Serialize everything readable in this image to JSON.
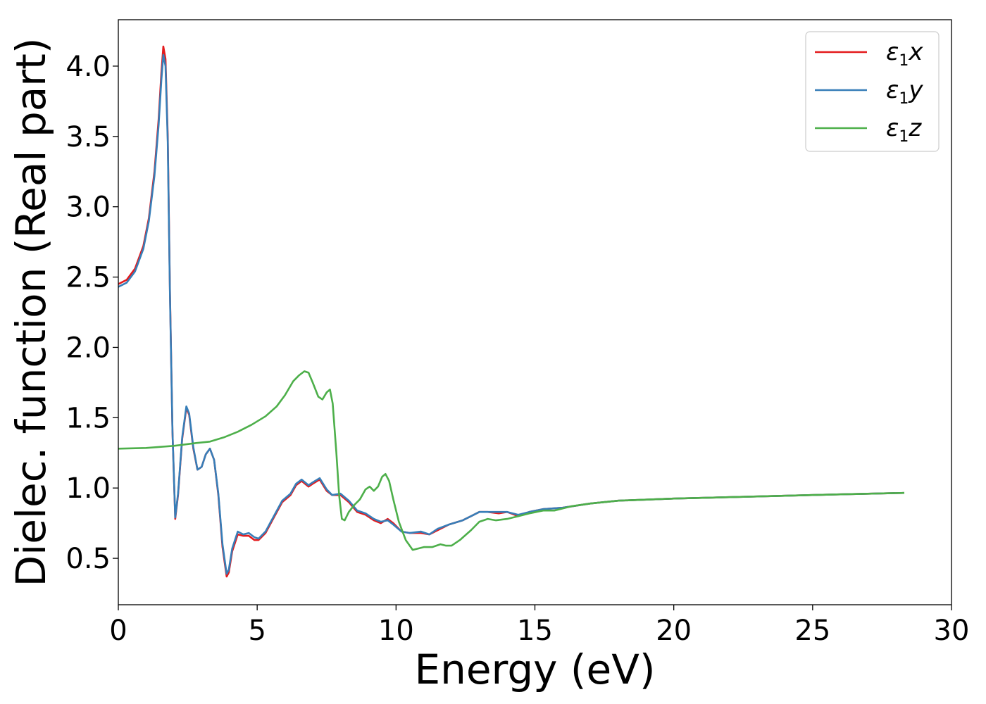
{
  "chart_data": {
    "type": "line",
    "xlabel": "Energy (eV)",
    "ylabel": "Dielec. function (Real part)",
    "xlim": [
      0,
      30
    ],
    "ylim": [
      0.17,
      4.33
    ],
    "xticks": [
      0,
      5,
      10,
      15,
      20,
      25,
      30
    ],
    "xtick_labels": [
      "0",
      "5",
      "10",
      "15",
      "20",
      "25",
      "30"
    ],
    "yticks": [
      0.5,
      1.0,
      1.5,
      2.0,
      2.5,
      3.0,
      3.5,
      4.0
    ],
    "ytick_labels": [
      "0.5",
      "1.0",
      "1.5",
      "2.0",
      "2.5",
      "3.0",
      "3.5",
      "4.0"
    ],
    "grid": false,
    "legend_position": "top-right",
    "series": [
      {
        "name": "ε1x",
        "legend_main": "ε",
        "legend_sub": "1",
        "legend_var": "x",
        "color": "#e41a1c",
        "points": [
          [
            0,
            2.45
          ],
          [
            0.3,
            2.48
          ],
          [
            0.6,
            2.56
          ],
          [
            0.9,
            2.72
          ],
          [
            1.1,
            2.92
          ],
          [
            1.3,
            3.25
          ],
          [
            1.45,
            3.62
          ],
          [
            1.55,
            3.95
          ],
          [
            1.62,
            4.14
          ],
          [
            1.7,
            4.05
          ],
          [
            1.78,
            3.5
          ],
          [
            1.86,
            2.4
          ],
          [
            1.95,
            1.4
          ],
          [
            2.05,
            0.78
          ],
          [
            2.15,
            0.95
          ],
          [
            2.3,
            1.35
          ],
          [
            2.45,
            1.57
          ],
          [
            2.55,
            1.52
          ],
          [
            2.7,
            1.28
          ],
          [
            2.85,
            1.13
          ],
          [
            3.0,
            1.15
          ],
          [
            3.15,
            1.24
          ],
          [
            3.3,
            1.28
          ],
          [
            3.45,
            1.2
          ],
          [
            3.6,
            0.95
          ],
          [
            3.75,
            0.58
          ],
          [
            3.9,
            0.37
          ],
          [
            3.98,
            0.4
          ],
          [
            4.1,
            0.55
          ],
          [
            4.3,
            0.67
          ],
          [
            4.5,
            0.66
          ],
          [
            4.7,
            0.66
          ],
          [
            4.9,
            0.63
          ],
          [
            5.05,
            0.63
          ],
          [
            5.3,
            0.68
          ],
          [
            5.6,
            0.79
          ],
          [
            5.9,
            0.9
          ],
          [
            6.2,
            0.95
          ],
          [
            6.4,
            1.02
          ],
          [
            6.6,
            1.05
          ],
          [
            6.85,
            1.01
          ],
          [
            7.0,
            1.03
          ],
          [
            7.25,
            1.06
          ],
          [
            7.5,
            0.98
          ],
          [
            7.7,
            0.95
          ],
          [
            8.0,
            0.95
          ],
          [
            8.3,
            0.9
          ],
          [
            8.6,
            0.83
          ],
          [
            8.9,
            0.81
          ],
          [
            9.2,
            0.77
          ],
          [
            9.45,
            0.75
          ],
          [
            9.7,
            0.78
          ],
          [
            9.9,
            0.75
          ],
          [
            10.2,
            0.69
          ],
          [
            10.5,
            0.68
          ],
          [
            10.9,
            0.68
          ],
          [
            11.2,
            0.67
          ],
          [
            11.5,
            0.7
          ],
          [
            11.9,
            0.74
          ],
          [
            12.4,
            0.77
          ],
          [
            12.7,
            0.8
          ],
          [
            13.0,
            0.83
          ],
          [
            13.3,
            0.83
          ],
          [
            13.7,
            0.82
          ],
          [
            14.0,
            0.83
          ],
          [
            14.4,
            0.8
          ],
          [
            14.8,
            0.83
          ],
          [
            15.3,
            0.85
          ],
          [
            16.0,
            0.86
          ],
          [
            17.0,
            0.89
          ],
          [
            18.0,
            0.91
          ],
          [
            20.0,
            0.925
          ],
          [
            22.0,
            0.935
          ],
          [
            24.0,
            0.945
          ],
          [
            26.0,
            0.955
          ],
          [
            28.3,
            0.965
          ]
        ]
      },
      {
        "name": "ε1y",
        "legend_main": "ε",
        "legend_sub": "1",
        "legend_var": "y",
        "color": "#377eb8",
        "points": [
          [
            0,
            2.43
          ],
          [
            0.3,
            2.46
          ],
          [
            0.6,
            2.54
          ],
          [
            0.9,
            2.7
          ],
          [
            1.1,
            2.9
          ],
          [
            1.3,
            3.22
          ],
          [
            1.45,
            3.58
          ],
          [
            1.55,
            3.9
          ],
          [
            1.62,
            4.08
          ],
          [
            1.7,
            4.0
          ],
          [
            1.78,
            3.46
          ],
          [
            1.86,
            2.38
          ],
          [
            1.95,
            1.4
          ],
          [
            2.05,
            0.79
          ],
          [
            2.15,
            0.96
          ],
          [
            2.3,
            1.36
          ],
          [
            2.45,
            1.58
          ],
          [
            2.55,
            1.53
          ],
          [
            2.7,
            1.29
          ],
          [
            2.85,
            1.13
          ],
          [
            3.0,
            1.15
          ],
          [
            3.15,
            1.24
          ],
          [
            3.3,
            1.28
          ],
          [
            3.45,
            1.2
          ],
          [
            3.6,
            0.96
          ],
          [
            3.75,
            0.6
          ],
          [
            3.9,
            0.39
          ],
          [
            3.98,
            0.42
          ],
          [
            4.1,
            0.57
          ],
          [
            4.3,
            0.69
          ],
          [
            4.5,
            0.67
          ],
          [
            4.7,
            0.68
          ],
          [
            4.9,
            0.65
          ],
          [
            5.05,
            0.64
          ],
          [
            5.3,
            0.69
          ],
          [
            5.6,
            0.8
          ],
          [
            5.9,
            0.91
          ],
          [
            6.2,
            0.96
          ],
          [
            6.4,
            1.03
          ],
          [
            6.6,
            1.06
          ],
          [
            6.85,
            1.02
          ],
          [
            7.0,
            1.04
          ],
          [
            7.25,
            1.07
          ],
          [
            7.5,
            0.99
          ],
          [
            7.7,
            0.95
          ],
          [
            8.0,
            0.96
          ],
          [
            8.3,
            0.91
          ],
          [
            8.6,
            0.84
          ],
          [
            8.9,
            0.82
          ],
          [
            9.2,
            0.78
          ],
          [
            9.45,
            0.76
          ],
          [
            9.7,
            0.77
          ],
          [
            9.9,
            0.74
          ],
          [
            10.2,
            0.69
          ],
          [
            10.5,
            0.68
          ],
          [
            10.9,
            0.69
          ],
          [
            11.2,
            0.67
          ],
          [
            11.5,
            0.71
          ],
          [
            11.9,
            0.74
          ],
          [
            12.4,
            0.77
          ],
          [
            12.7,
            0.8
          ],
          [
            13.0,
            0.83
          ],
          [
            13.3,
            0.83
          ],
          [
            13.7,
            0.83
          ],
          [
            14.0,
            0.83
          ],
          [
            14.4,
            0.81
          ],
          [
            14.8,
            0.83
          ],
          [
            15.3,
            0.85
          ],
          [
            16.0,
            0.86
          ],
          [
            17.0,
            0.89
          ],
          [
            18.0,
            0.91
          ],
          [
            20.0,
            0.925
          ],
          [
            22.0,
            0.935
          ],
          [
            24.0,
            0.945
          ],
          [
            26.0,
            0.955
          ],
          [
            28.3,
            0.965
          ]
        ]
      },
      {
        "name": "ε1z",
        "legend_main": "ε",
        "legend_sub": "1",
        "legend_var": "z",
        "color": "#4daf4a",
        "points": [
          [
            0,
            1.28
          ],
          [
            1.0,
            1.285
          ],
          [
            2.0,
            1.3
          ],
          [
            2.8,
            1.32
          ],
          [
            3.3,
            1.33
          ],
          [
            3.8,
            1.36
          ],
          [
            4.3,
            1.4
          ],
          [
            4.8,
            1.45
          ],
          [
            5.3,
            1.51
          ],
          [
            5.7,
            1.58
          ],
          [
            6.0,
            1.66
          ],
          [
            6.3,
            1.76
          ],
          [
            6.5,
            1.8
          ],
          [
            6.7,
            1.83
          ],
          [
            6.85,
            1.82
          ],
          [
            7.0,
            1.75
          ],
          [
            7.2,
            1.65
          ],
          [
            7.35,
            1.63
          ],
          [
            7.5,
            1.68
          ],
          [
            7.62,
            1.7
          ],
          [
            7.72,
            1.6
          ],
          [
            7.85,
            1.25
          ],
          [
            7.95,
            0.95
          ],
          [
            8.05,
            0.78
          ],
          [
            8.15,
            0.77
          ],
          [
            8.3,
            0.83
          ],
          [
            8.5,
            0.88
          ],
          [
            8.7,
            0.92
          ],
          [
            8.9,
            0.99
          ],
          [
            9.05,
            1.01
          ],
          [
            9.2,
            0.98
          ],
          [
            9.35,
            1.01
          ],
          [
            9.5,
            1.08
          ],
          [
            9.62,
            1.1
          ],
          [
            9.75,
            1.05
          ],
          [
            9.9,
            0.92
          ],
          [
            10.1,
            0.76
          ],
          [
            10.35,
            0.63
          ],
          [
            10.6,
            0.56
          ],
          [
            10.8,
            0.57
          ],
          [
            11.0,
            0.58
          ],
          [
            11.3,
            0.58
          ],
          [
            11.6,
            0.6
          ],
          [
            11.8,
            0.59
          ],
          [
            12.0,
            0.59
          ],
          [
            12.3,
            0.63
          ],
          [
            12.7,
            0.7
          ],
          [
            13.0,
            0.76
          ],
          [
            13.3,
            0.78
          ],
          [
            13.6,
            0.77
          ],
          [
            14.0,
            0.78
          ],
          [
            14.4,
            0.8
          ],
          [
            14.8,
            0.82
          ],
          [
            15.3,
            0.84
          ],
          [
            15.7,
            0.84
          ],
          [
            16.3,
            0.87
          ],
          [
            17.0,
            0.89
          ],
          [
            18.0,
            0.91
          ],
          [
            20.0,
            0.925
          ],
          [
            22.0,
            0.935
          ],
          [
            24.0,
            0.945
          ],
          [
            26.0,
            0.955
          ],
          [
            28.3,
            0.965
          ]
        ]
      }
    ]
  }
}
